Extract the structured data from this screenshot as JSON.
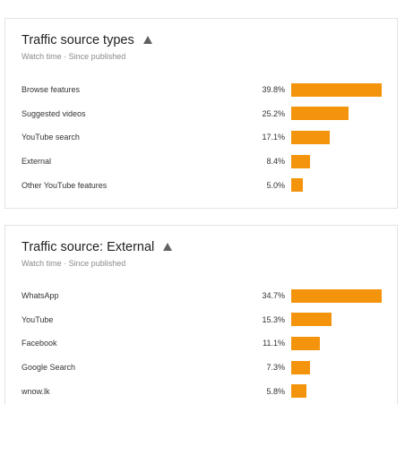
{
  "traffic_types": {
    "title": "Traffic source types",
    "subtitle": "Watch time · Since published",
    "max": 39.8,
    "rows": [
      {
        "label": "Browse features",
        "pct": "39.8%",
        "value": 39.8
      },
      {
        "label": "Suggested videos",
        "pct": "25.2%",
        "value": 25.2
      },
      {
        "label": "YouTube search",
        "pct": "17.1%",
        "value": 17.1
      },
      {
        "label": "External",
        "pct": "8.4%",
        "value": 8.4
      },
      {
        "label": "Other YouTube features",
        "pct": "5.0%",
        "value": 5.0
      }
    ]
  },
  "external_sources": {
    "title": "Traffic source: External",
    "subtitle": "Watch time · Since published",
    "max": 34.7,
    "rows": [
      {
        "label": "WhatsApp",
        "pct": "34.7%",
        "value": 34.7
      },
      {
        "label": "YouTube",
        "pct": "15.3%",
        "value": 15.3
      },
      {
        "label": "Facebook",
        "pct": "11.1%",
        "value": 11.1
      },
      {
        "label": "Google Search",
        "pct": "7.3%",
        "value": 7.3
      },
      {
        "label": "wnow.lk",
        "pct": "5.8%",
        "value": 5.8
      }
    ]
  },
  "colors": {
    "bar": "#f4940d",
    "warning_icon": "#616161"
  },
  "icons": {
    "warning": "warning-triangle-icon"
  }
}
